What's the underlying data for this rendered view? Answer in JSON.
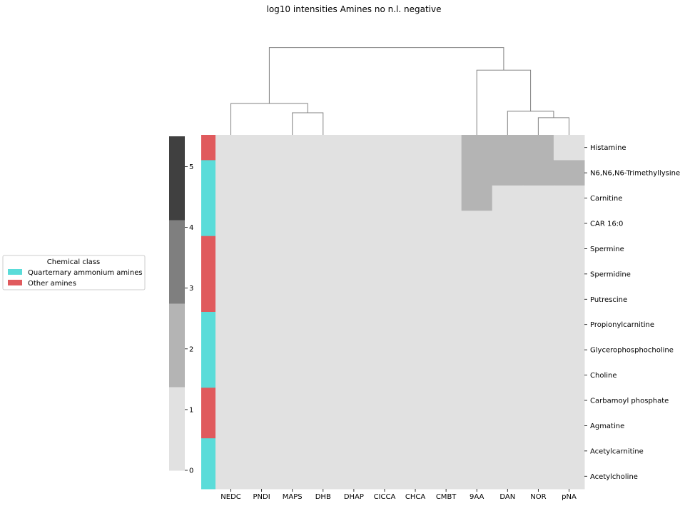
{
  "chart_data": {
    "type": "heatmap",
    "title": "log10 intensities Amines no n.l. negative",
    "columns": [
      "NEDC",
      "PNDI",
      "MAPS",
      "DHB",
      "DHAP",
      "CICCA",
      "CHCA",
      "CMBT",
      "9AA",
      "DAN",
      "NOR",
      "pNA"
    ],
    "rows": [
      "Histamine",
      "N6,N6,N6-Trimethyllysine",
      "Carnitine",
      "CAR 16:0",
      "Spermine",
      "Spermidine",
      "Putrescine",
      "Propionylcarnitine",
      "Glycerophosphocholine",
      "Choline",
      "Carbamoyl phosphate",
      "Agmatine",
      "Acetylcarnitine",
      "Acetylcholine"
    ],
    "values": [
      [
        0,
        0,
        0,
        0,
        0,
        0,
        0,
        0,
        2,
        2,
        2,
        0
      ],
      [
        0,
        0,
        0,
        0,
        0,
        0,
        0,
        0,
        2,
        2,
        2,
        2
      ],
      [
        0,
        0,
        0,
        0,
        0,
        0,
        0,
        0,
        2,
        0,
        0,
        0
      ],
      [
        0,
        0,
        0,
        0,
        0,
        0,
        0,
        0,
        0,
        0,
        0,
        0
      ],
      [
        0,
        0,
        0,
        0,
        0,
        0,
        0,
        0,
        0,
        0,
        0,
        0
      ],
      [
        0,
        0,
        0,
        0,
        0,
        0,
        0,
        0,
        0,
        0,
        0,
        0
      ],
      [
        0,
        0,
        0,
        0,
        0,
        0,
        0,
        0,
        0,
        0,
        0,
        0
      ],
      [
        0,
        0,
        0,
        0,
        0,
        0,
        0,
        0,
        0,
        0,
        0,
        0
      ],
      [
        0,
        0,
        0,
        0,
        0,
        0,
        0,
        0,
        0,
        0,
        0,
        0
      ],
      [
        0,
        0,
        0,
        0,
        0,
        0,
        0,
        0,
        0,
        0,
        0,
        0
      ],
      [
        0,
        0,
        0,
        0,
        0,
        0,
        0,
        0,
        0,
        0,
        0,
        0
      ],
      [
        0,
        0,
        0,
        0,
        0,
        0,
        0,
        0,
        0,
        0,
        0,
        0
      ],
      [
        0,
        0,
        0,
        0,
        0,
        0,
        0,
        0,
        0,
        0,
        0,
        0
      ],
      [
        0,
        0,
        0,
        0,
        0,
        0,
        0,
        0,
        0,
        0,
        0,
        0
      ]
    ],
    "row_classes": [
      1,
      0,
      0,
      0,
      1,
      1,
      1,
      0,
      0,
      0,
      1,
      1,
      0,
      0
    ],
    "colorbar": {
      "ticks": [
        0,
        1,
        2,
        3,
        4,
        5
      ],
      "range": [
        0,
        5.5
      ],
      "bins": [
        {
          "from": 0,
          "to": 1.375,
          "color": "#e1e1e1"
        },
        {
          "from": 1.375,
          "to": 2.75,
          "color": "#b4b4b4"
        },
        {
          "from": 2.75,
          "to": 4.125,
          "color": "#7f7f7f"
        },
        {
          "from": 4.125,
          "to": 5.5,
          "color": "#404040"
        }
      ]
    },
    "legend": {
      "title": "Chemical class",
      "placement": "left",
      "items": [
        {
          "label": "Quarternary ammonium amines",
          "color": "#5adcd9"
        },
        {
          "label": "Other amines",
          "color": "#e05a5d"
        }
      ]
    },
    "dendrogram": {
      "leaf_order": [
        "NEDC",
        "PNDI",
        "MAPS",
        "DHB",
        "DHAP",
        "CICCA",
        "CHCA",
        "CMBT",
        "9AA",
        "DAN",
        "NOR",
        "pNA"
      ],
      "merges": [
        {
          "left": "leaf:MAPS",
          "right": "leaf:DHB",
          "height": 1.0
        },
        {
          "left": "leaf:NOR",
          "right": "leaf:pNA",
          "height": 0.78
        },
        {
          "left": "leaf:DAN",
          "right": "node:1",
          "height": 1.07
        },
        {
          "left": "leaf:9AA",
          "right": "node:2",
          "height": 2.93
        },
        {
          "left": "leaf:NEDC",
          "right": "node:0",
          "height": 1.42
        },
        {
          "left": "node:4",
          "right": "node:3",
          "height": 3.95
        }
      ],
      "max_height": 4.1
    }
  }
}
